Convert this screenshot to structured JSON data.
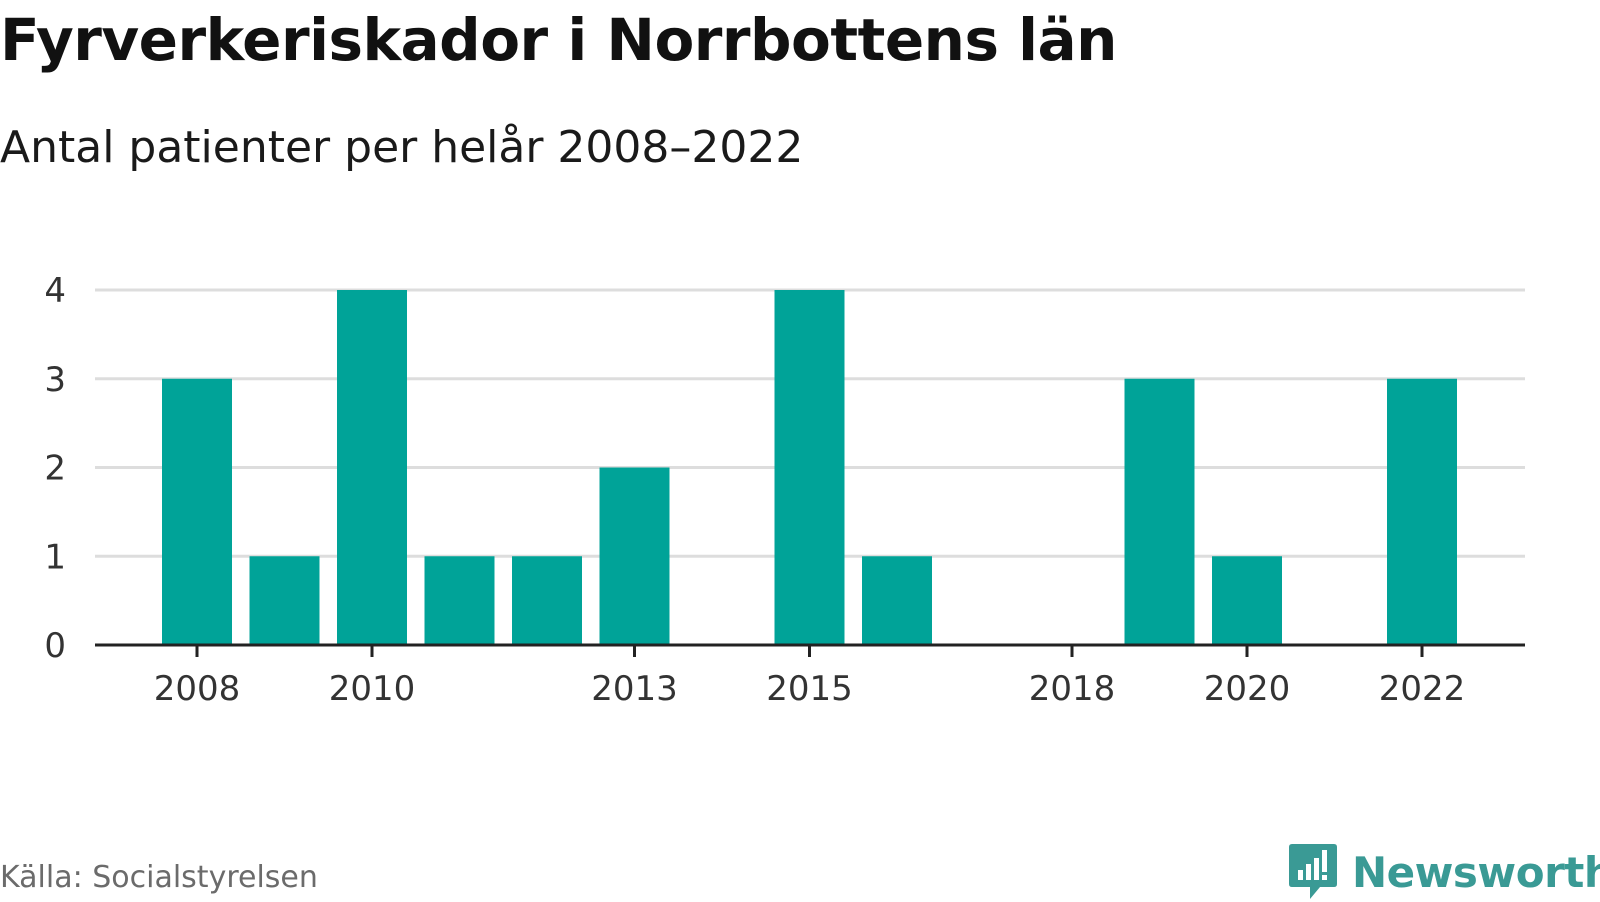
{
  "title": "Fyrverkeriskador i Norrbottens län",
  "subtitle": "Antal patienter per helår 2008–2022",
  "source": "Källa: Socialstyrelsen",
  "brand": {
    "name": "Newsworthy",
    "icon": "newsworthy-logo-icon",
    "color": "#3a9a95"
  },
  "colors": {
    "bar": "#00a398",
    "grid": "#dddddd",
    "axis": "#222222",
    "tick_text": "#333333"
  },
  "chart_data": {
    "type": "bar",
    "categories": [
      "2008",
      "2009",
      "2010",
      "2011",
      "2012",
      "2013",
      "2014",
      "2015",
      "2016",
      "2017",
      "2018",
      "2019",
      "2020",
      "2021",
      "2022"
    ],
    "values": [
      3,
      1,
      4,
      1,
      1,
      2,
      0,
      4,
      1,
      0,
      0,
      3,
      1,
      0,
      3
    ],
    "x_tick_labels": [
      "2008",
      "2010",
      "2013",
      "2015",
      "2018",
      "2020",
      "2022"
    ],
    "y_ticks": [
      0,
      1,
      2,
      3,
      4
    ],
    "ylim": [
      0,
      4
    ],
    "grid": true,
    "legend": "none",
    "xlabel": "",
    "ylabel": ""
  }
}
